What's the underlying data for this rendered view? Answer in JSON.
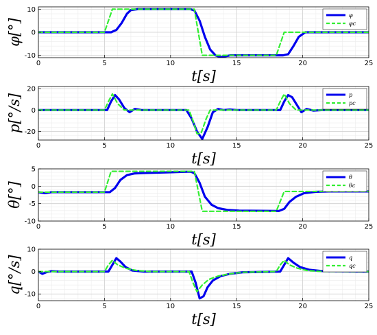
{
  "chart_data": [
    {
      "type": "line",
      "xlabel": "t[s]",
      "ylabel": "φ[°]",
      "xlim": [
        0,
        25
      ],
      "ylim": [
        -11,
        11
      ],
      "xticks": [
        0,
        5,
        10,
        15,
        20,
        25
      ],
      "yticks": [
        -10,
        0,
        10
      ],
      "grid": true,
      "legend_position": "top-right",
      "series": [
        {
          "name": "φ",
          "style": "solid",
          "color": "#0000ee",
          "x": [
            0,
            5.5,
            5.9,
            6.3,
            6.7,
            7.0,
            7.5,
            11.5,
            11.8,
            12.2,
            12.6,
            13.0,
            13.4,
            13.8,
            14.5,
            18.5,
            18.9,
            19.3,
            19.7,
            20.2,
            20.7,
            25
          ],
          "y": [
            0,
            0,
            1,
            4,
            8,
            9.6,
            10,
            10,
            9.5,
            5,
            -2,
            -7.5,
            -10,
            -10.8,
            -10,
            -10,
            -9.5,
            -6,
            -2,
            0,
            0,
            0
          ]
        },
        {
          "name": "φc",
          "style": "dashed",
          "color": "#33ee33",
          "x": [
            0,
            5,
            5.6,
            11.8,
            12.4,
            18,
            18.6,
            25
          ],
          "y": [
            0,
            0,
            10,
            10,
            -10,
            -10,
            0,
            0
          ]
        }
      ]
    },
    {
      "type": "line",
      "xlabel": "t[s]",
      "ylabel": "p[°/s]",
      "xlim": [
        0,
        25
      ],
      "ylim": [
        -28,
        22
      ],
      "xticks": [
        0,
        5,
        10,
        15,
        20,
        25
      ],
      "yticks": [
        -20,
        0,
        20
      ],
      "grid": true,
      "legend_position": "top-right",
      "series": [
        {
          "name": "p",
          "style": "solid",
          "color": "#0000ee",
          "x": [
            0,
            5.2,
            5.5,
            5.8,
            6.1,
            6.5,
            6.9,
            7.3,
            7.8,
            8.3,
            11.2,
            11.6,
            12.0,
            12.4,
            12.8,
            13.2,
            13.6,
            14.0,
            14.5,
            15.0,
            18.3,
            18.6,
            18.9,
            19.2,
            19.5,
            19.9,
            20.3,
            20.8,
            21.5,
            25
          ],
          "y": [
            0,
            0,
            8,
            14,
            10,
            2,
            -2,
            1,
            0,
            0,
            0,
            -8,
            -20,
            -27,
            -16,
            -2,
            1,
            0,
            0.5,
            0,
            0,
            8,
            14,
            12,
            6,
            -2,
            1,
            -0.5,
            0,
            0
          ]
        },
        {
          "name": "pc",
          "style": "dashed",
          "color": "#33ee33",
          "x": [
            0,
            5.0,
            5.3,
            5.6,
            6.0,
            6.5,
            11.4,
            11.7,
            12.0,
            12.3,
            12.7,
            13.0,
            18.0,
            18.3,
            18.6,
            19.0,
            19.5,
            25
          ],
          "y": [
            0,
            0,
            8,
            15,
            6,
            0,
            0,
            -10,
            -22,
            -22,
            -8,
            0,
            0,
            8,
            15,
            6,
            0,
            0
          ]
        }
      ]
    },
    {
      "type": "line",
      "xlabel": "t[s]",
      "ylabel": "θ[°]",
      "xlim": [
        0,
        25
      ],
      "ylim": [
        -10,
        5
      ],
      "xticks": [
        0,
        5,
        10,
        15,
        20,
        25
      ],
      "yticks": [
        -10,
        -5,
        0,
        5
      ],
      "grid": true,
      "legend_position": "top-right",
      "series": [
        {
          "name": "θ",
          "style": "solid",
          "color": "#0000ee",
          "x": [
            0,
            0.5,
            1,
            5.4,
            5.8,
            6.2,
            6.7,
            7.3,
            8,
            11.5,
            11.8,
            12.2,
            12.6,
            13.1,
            13.6,
            14.3,
            15.2,
            18.2,
            18.6,
            19.0,
            19.5,
            20.1,
            21,
            22,
            25
          ],
          "y": [
            -1.7,
            -2.0,
            -1.7,
            -1.7,
            -0.5,
            1.8,
            3.2,
            3.7,
            3.8,
            4.2,
            3.8,
            1,
            -3,
            -5.3,
            -6.3,
            -6.8,
            -7.0,
            -7.1,
            -6.5,
            -4.5,
            -3.0,
            -2.0,
            -1.6,
            -1.5,
            -1.5
          ]
        },
        {
          "name": "θc",
          "style": "dashed",
          "color": "#33ee33",
          "x": [
            0,
            5.0,
            5.5,
            11.8,
            12.4,
            18.0,
            18.6,
            25
          ],
          "y": [
            -1.7,
            -1.7,
            4.3,
            4.3,
            -7.2,
            -7.2,
            -1.5,
            -1.5
          ]
        }
      ]
    },
    {
      "type": "line",
      "xlabel": "t[s]",
      "ylabel": "q[°/s]",
      "xlim": [
        0,
        25
      ],
      "ylim": [
        -13,
        10
      ],
      "xticks": [
        0,
        5,
        10,
        15,
        20,
        25
      ],
      "yticks": [
        -10,
        0,
        10
      ],
      "grid": true,
      "legend_position": "top-right",
      "series": [
        {
          "name": "q",
          "style": "solid",
          "color": "#0000ee",
          "x": [
            0,
            0.3,
            0.6,
            1.0,
            1.5,
            5.3,
            5.6,
            5.9,
            6.2,
            6.6,
            7.1,
            8,
            11.6,
            11.9,
            12.2,
            12.5,
            12.8,
            13.2,
            13.8,
            14.5,
            15.5,
            18.3,
            18.6,
            18.9,
            19.3,
            19.8,
            20.5,
            21.5,
            25
          ],
          "y": [
            0,
            -1,
            -0.3,
            0.2,
            0,
            0,
            3,
            6,
            4.5,
            2,
            0.5,
            0,
            0,
            -5,
            -12,
            -11,
            -7,
            -4,
            -2,
            -1,
            -0.3,
            0,
            3,
            6,
            4,
            2,
            0.8,
            0.2,
            0
          ]
        },
        {
          "name": "qc",
          "style": "dashed",
          "color": "#33ee33",
          "x": [
            0,
            5.0,
            5.3,
            5.6,
            6.0,
            6.6,
            7.4,
            8.5,
            11.4,
            11.7,
            12.0,
            12.4,
            12.9,
            13.6,
            14.5,
            15.5,
            18.0,
            18.3,
            18.6,
            19.0,
            19.6,
            20.3,
            21.2,
            25
          ],
          "y": [
            0,
            0,
            3,
            5,
            3,
            1.5,
            0.5,
            0,
            0,
            -5,
            -9,
            -6,
            -3.5,
            -2,
            -1,
            -0.3,
            0,
            3,
            5,
            3,
            1.5,
            0.5,
            0.1,
            0
          ]
        }
      ]
    }
  ]
}
